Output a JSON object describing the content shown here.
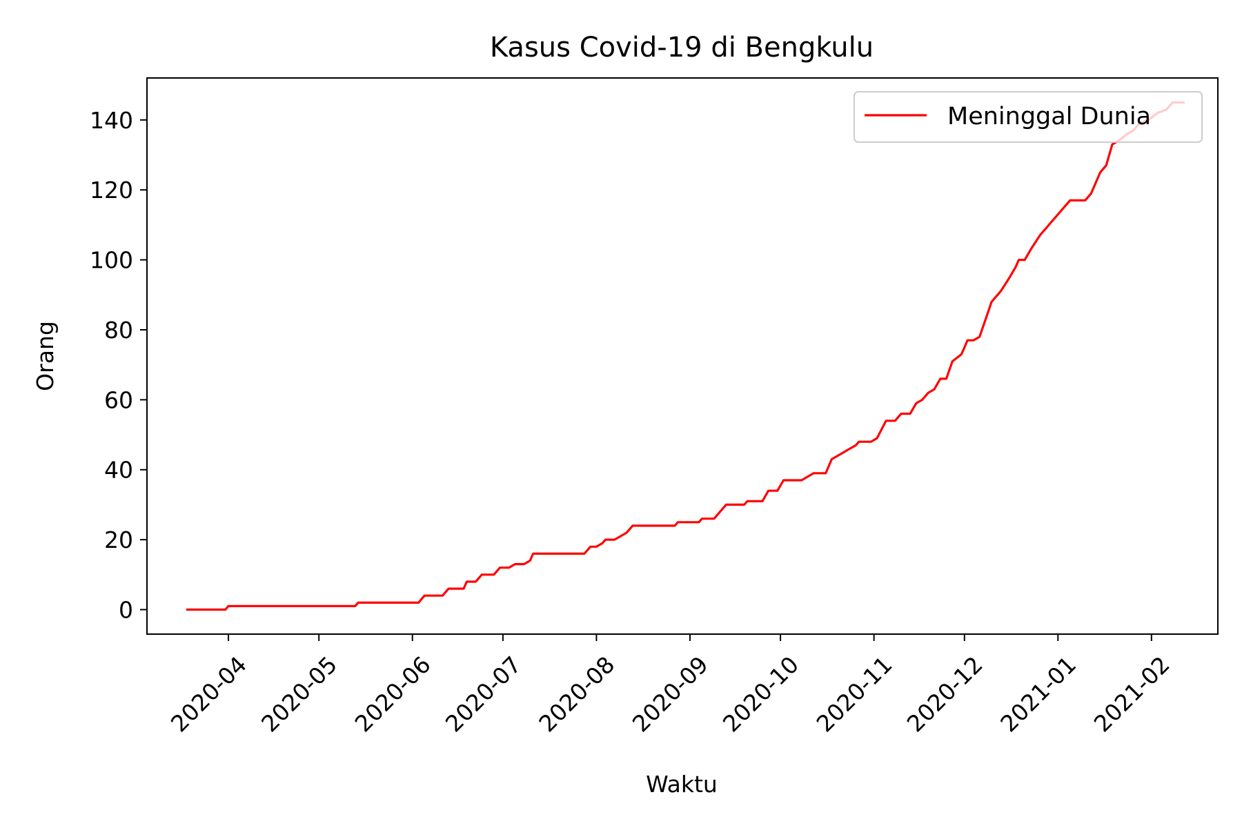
{
  "chart_data": {
    "type": "line",
    "title": "Kasus Covid-19 di Bengkulu",
    "xlabel": "Waktu",
    "ylabel": "Orang",
    "x_axis_type": "date",
    "xlim": [
      "2020-03-05",
      "2021-02-23"
    ],
    "ylim": [
      -7,
      152
    ],
    "x_ticks": [
      "2020-04",
      "2020-05",
      "2020-06",
      "2020-07",
      "2020-08",
      "2020-09",
      "2020-10",
      "2020-11",
      "2020-12",
      "2021-01",
      "2021-02"
    ],
    "x_tick_dates": [
      "2020-04-01",
      "2020-05-01",
      "2020-06-01",
      "2020-07-01",
      "2020-08-01",
      "2020-09-01",
      "2020-10-01",
      "2020-11-01",
      "2020-12-01",
      "2021-01-01",
      "2021-02-01"
    ],
    "y_ticks": [
      0,
      20,
      40,
      60,
      80,
      100,
      120,
      140
    ],
    "grid": false,
    "legend_position": "top-right",
    "series": [
      {
        "name": "Meninggal Dunia",
        "color": "#ff0000",
        "points": [
          [
            "2020-03-18",
            0
          ],
          [
            "2020-03-31",
            0
          ],
          [
            "2020-04-01",
            1
          ],
          [
            "2020-05-13",
            1
          ],
          [
            "2020-05-14",
            2
          ],
          [
            "2020-06-03",
            2
          ],
          [
            "2020-06-05",
            4
          ],
          [
            "2020-06-11",
            4
          ],
          [
            "2020-06-13",
            6
          ],
          [
            "2020-06-18",
            6
          ],
          [
            "2020-06-19",
            8
          ],
          [
            "2020-06-22",
            8
          ],
          [
            "2020-06-24",
            10
          ],
          [
            "2020-06-28",
            10
          ],
          [
            "2020-06-30",
            12
          ],
          [
            "2020-07-03",
            12
          ],
          [
            "2020-07-05",
            13
          ],
          [
            "2020-07-08",
            13
          ],
          [
            "2020-07-10",
            14
          ],
          [
            "2020-07-11",
            16
          ],
          [
            "2020-07-28",
            16
          ],
          [
            "2020-07-30",
            18
          ],
          [
            "2020-08-01",
            18
          ],
          [
            "2020-08-03",
            19
          ],
          [
            "2020-08-04",
            20
          ],
          [
            "2020-08-07",
            20
          ],
          [
            "2020-08-09",
            21
          ],
          [
            "2020-08-11",
            22
          ],
          [
            "2020-08-13",
            24
          ],
          [
            "2020-08-27",
            24
          ],
          [
            "2020-08-28",
            25
          ],
          [
            "2020-09-04",
            25
          ],
          [
            "2020-09-05",
            26
          ],
          [
            "2020-09-09",
            26
          ],
          [
            "2020-09-11",
            28
          ],
          [
            "2020-09-13",
            30
          ],
          [
            "2020-09-19",
            30
          ],
          [
            "2020-09-20",
            31
          ],
          [
            "2020-09-25",
            31
          ],
          [
            "2020-09-27",
            34
          ],
          [
            "2020-09-30",
            34
          ],
          [
            "2020-10-02",
            37
          ],
          [
            "2020-10-08",
            37
          ],
          [
            "2020-10-10",
            38
          ],
          [
            "2020-10-12",
            39
          ],
          [
            "2020-10-16",
            39
          ],
          [
            "2020-10-18",
            43
          ],
          [
            "2020-10-20",
            44
          ],
          [
            "2020-10-22",
            45
          ],
          [
            "2020-10-24",
            46
          ],
          [
            "2020-10-26",
            47
          ],
          [
            "2020-10-27",
            48
          ],
          [
            "2020-10-31",
            48
          ],
          [
            "2020-11-02",
            49
          ],
          [
            "2020-11-05",
            54
          ],
          [
            "2020-11-08",
            54
          ],
          [
            "2020-11-10",
            56
          ],
          [
            "2020-11-13",
            56
          ],
          [
            "2020-11-15",
            59
          ],
          [
            "2020-11-17",
            60
          ],
          [
            "2020-11-19",
            62
          ],
          [
            "2020-11-21",
            63
          ],
          [
            "2020-11-23",
            66
          ],
          [
            "2020-11-25",
            66
          ],
          [
            "2020-11-27",
            71
          ],
          [
            "2020-11-30",
            73
          ],
          [
            "2020-12-02",
            77
          ],
          [
            "2020-12-04",
            77
          ],
          [
            "2020-12-06",
            78
          ],
          [
            "2020-12-08",
            83
          ],
          [
            "2020-12-10",
            88
          ],
          [
            "2020-12-13",
            91
          ],
          [
            "2020-12-16",
            95
          ],
          [
            "2020-12-18",
            98
          ],
          [
            "2020-12-19",
            100
          ],
          [
            "2020-12-21",
            100
          ],
          [
            "2020-12-23",
            103
          ],
          [
            "2020-12-26",
            107
          ],
          [
            "2020-12-28",
            109
          ],
          [
            "2020-12-30",
            111
          ],
          [
            "2021-01-01",
            113
          ],
          [
            "2021-01-03",
            115
          ],
          [
            "2021-01-05",
            117
          ],
          [
            "2021-01-10",
            117
          ],
          [
            "2021-01-12",
            119
          ],
          [
            "2021-01-15",
            125
          ],
          [
            "2021-01-17",
            127
          ],
          [
            "2021-01-19",
            133
          ],
          [
            "2021-01-21",
            134
          ],
          [
            "2021-01-24",
            136
          ],
          [
            "2021-01-26",
            137
          ],
          [
            "2021-01-28",
            139
          ],
          [
            "2021-01-31",
            140
          ],
          [
            "2021-02-03",
            142
          ],
          [
            "2021-02-06",
            143
          ],
          [
            "2021-02-08",
            145
          ],
          [
            "2021-02-12",
            145
          ]
        ]
      }
    ]
  }
}
